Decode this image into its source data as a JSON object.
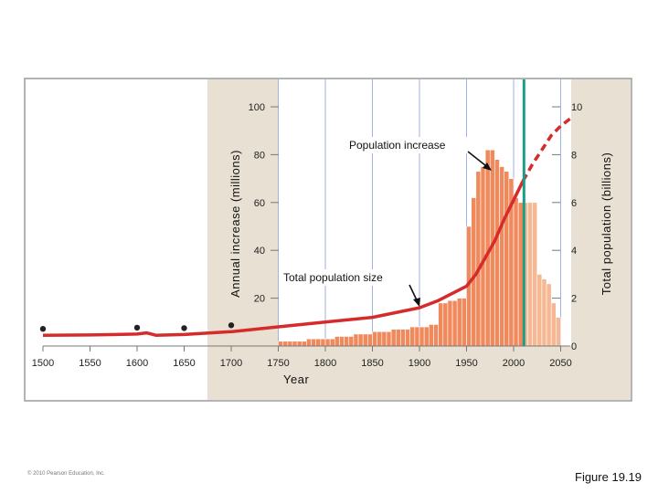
{
  "chart_data": {
    "type": "bar",
    "xlabel": "Year",
    "ylabel_left": "Annual increase (millions)",
    "ylabel_right": "Total population (billions)",
    "x_ticks": [
      "1500",
      "1550",
      "1600",
      "1650",
      "1700",
      "1750",
      "1800",
      "1850",
      "1900",
      "1950",
      "2000",
      "2050"
    ],
    "xlim": [
      1500,
      2060
    ],
    "y_left_ticks": [
      "20",
      "40",
      "60",
      "80",
      "100"
    ],
    "ylim_left": [
      0,
      100
    ],
    "y_right_ticks": [
      "0",
      "2",
      "4",
      "6",
      "8",
      "10"
    ],
    "ylim_right": [
      0,
      10
    ],
    "annotations": {
      "population_increase": "Population increase",
      "total_population_size": "Total population size"
    },
    "series": [
      {
        "name": "Annual increase (millions)",
        "type": "bar",
        "bin_width": 5,
        "x": [
          1750,
          1755,
          1760,
          1765,
          1770,
          1775,
          1780,
          1785,
          1790,
          1795,
          1800,
          1805,
          1810,
          1815,
          1820,
          1825,
          1830,
          1835,
          1840,
          1845,
          1850,
          1855,
          1860,
          1865,
          1870,
          1875,
          1880,
          1885,
          1890,
          1895,
          1900,
          1905,
          1910,
          1915,
          1920,
          1925,
          1930,
          1935,
          1940,
          1945,
          1950,
          1955,
          1960,
          1965,
          1970,
          1975,
          1980,
          1985,
          1990,
          1995,
          2000,
          2005,
          2010,
          2015,
          2020,
          2025,
          2030,
          2035,
          2040,
          2045
        ],
        "values": [
          2,
          2,
          2,
          2,
          2,
          2,
          3,
          3,
          3,
          3,
          3,
          3,
          4,
          4,
          4,
          4,
          5,
          5,
          5,
          5,
          6,
          6,
          6,
          6,
          7,
          7,
          7,
          7,
          8,
          8,
          8,
          8,
          9,
          9,
          18,
          18,
          19,
          19,
          20,
          20,
          50,
          62,
          73,
          75,
          82,
          82,
          78,
          75,
          73,
          70,
          62,
          60,
          60,
          60,
          60,
          30,
          28,
          26,
          18,
          12
        ],
        "projected_from": 2010
      },
      {
        "name": "Total population (billions)",
        "type": "line",
        "x": [
          1500,
          1550,
          1600,
          1610,
          1620,
          1650,
          1700,
          1750,
          1800,
          1850,
          1900,
          1920,
          1940,
          1950,
          1960,
          1970,
          1980,
          1990,
          2000,
          2010,
          2020,
          2030,
          2040,
          2050,
          2060
        ],
        "values": [
          0.45,
          0.46,
          0.5,
          0.55,
          0.45,
          0.48,
          0.6,
          0.8,
          1.0,
          1.2,
          1.6,
          1.9,
          2.3,
          2.5,
          3.0,
          3.7,
          4.4,
          5.3,
          6.1,
          6.9,
          7.6,
          8.2,
          8.8,
          9.2,
          9.5
        ],
        "projected_from": 2010
      }
    ],
    "marker_points_x": [
      1500,
      1600,
      1650,
      1700
    ],
    "current_year_x": 2011
  },
  "copyright": "© 2010 Pearson Education, Inc.",
  "figure_label": "Figure 19.19"
}
